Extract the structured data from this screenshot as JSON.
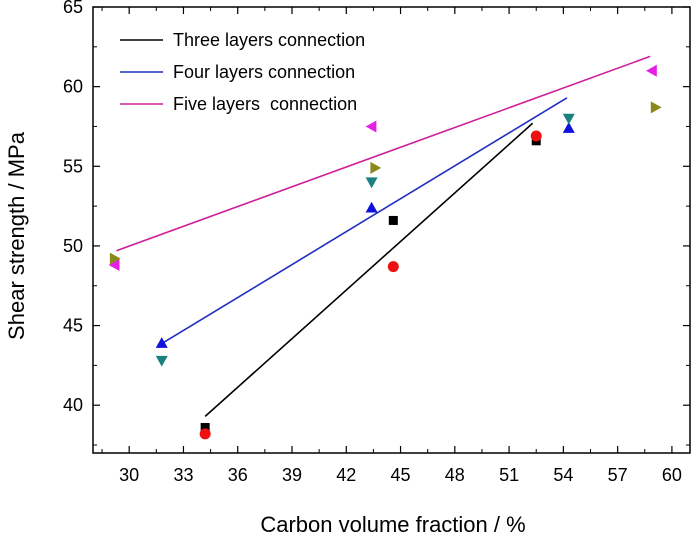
{
  "chart_data": {
    "type": "scatter",
    "xlabel": "Carbon volume fraction / %",
    "ylabel": "Shear strength / MPa",
    "xlim": [
      28,
      61
    ],
    "ylim": [
      37,
      65
    ],
    "xticks": [
      30,
      33,
      36,
      39,
      42,
      45,
      48,
      51,
      54,
      57,
      60
    ],
    "yticks": [
      40,
      45,
      50,
      55,
      60,
      65
    ],
    "grid": false,
    "legend_position": "top-left",
    "lines": [
      {
        "name": "Three layers connection",
        "color": "#000000",
        "x": [
          34.2,
          52.3
        ],
        "y": [
          39.3,
          57.7
        ]
      },
      {
        "name": "Four layers connection",
        "color": "#1f2fbf",
        "x": [
          31.7,
          54.2
        ],
        "y": [
          43.8,
          59.3
        ]
      },
      {
        "name": "Five layers  connection",
        "color": "#d0209a",
        "x": [
          29.3,
          58.8
        ],
        "y": [
          49.7,
          61.9
        ]
      }
    ],
    "points": [
      {
        "marker": "square",
        "color": "#000000",
        "x": [
          34.2,
          44.6,
          52.5
        ],
        "y": [
          38.6,
          51.6,
          56.6
        ]
      },
      {
        "marker": "circle",
        "color": "#ee1111",
        "x": [
          34.2,
          44.6,
          52.5
        ],
        "y": [
          38.2,
          48.7,
          56.9
        ]
      },
      {
        "marker": "triangle-up",
        "color": "#1111dd",
        "x": [
          31.8,
          43.4,
          54.3
        ],
        "y": [
          43.9,
          52.4,
          57.4
        ]
      },
      {
        "marker": "triangle-down",
        "color": "#1a8080",
        "x": [
          31.8,
          43.4,
          54.3
        ],
        "y": [
          42.8,
          54.0,
          58.0
        ]
      },
      {
        "marker": "triangle-left",
        "color": "#e51fe5",
        "x": [
          29.2,
          43.4,
          58.9
        ],
        "y": [
          48.8,
          57.5,
          61.0
        ]
      },
      {
        "marker": "triangle-right",
        "color": "#8a8a1a",
        "x": [
          29.2,
          43.6,
          59.1
        ],
        "y": [
          49.2,
          54.9,
          58.7
        ]
      }
    ]
  }
}
